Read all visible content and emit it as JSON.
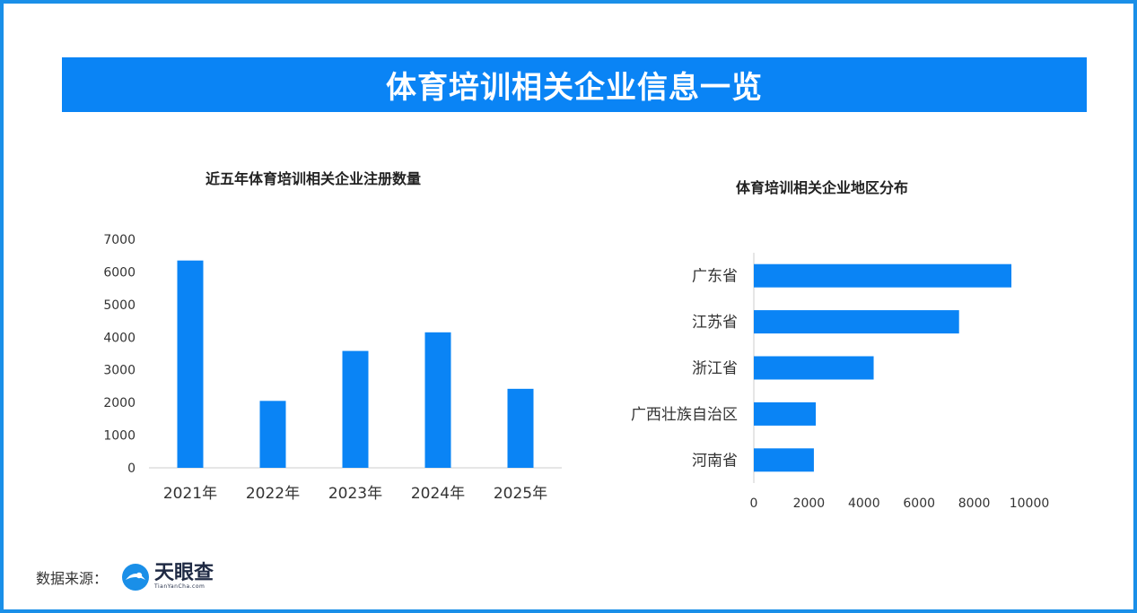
{
  "header": {
    "title": "体育培训相关企业信息一览"
  },
  "footer": {
    "source_label": "数据来源：",
    "brand_name": "天眼查",
    "brand_url": "TianYanCha.com"
  },
  "colors": {
    "accent": "#0a84f5",
    "border": "#1a8fe8"
  },
  "chart_data": [
    {
      "type": "bar",
      "title": "近五年体育培训相关企业注册数量",
      "categories": [
        "2021年",
        "2022年",
        "2023年",
        "2024年",
        "2025年"
      ],
      "values": [
        6350,
        2050,
        3580,
        4150,
        2420
      ],
      "ylim": [
        0,
        7000
      ],
      "yticks": [
        0,
        1000,
        2000,
        3000,
        4000,
        5000,
        6000,
        7000
      ],
      "grid": false,
      "color": "#0a84f5"
    },
    {
      "type": "bar",
      "orientation": "horizontal",
      "title": "体育培训相关企业地区分布",
      "categories": [
        "广东省",
        "江苏省",
        "浙江省",
        "广西壮族自治区",
        "河南省"
      ],
      "values": [
        9350,
        7450,
        4350,
        2250,
        2180
      ],
      "xlim": [
        0,
        10000
      ],
      "xticks": [
        0,
        2000,
        4000,
        6000,
        8000,
        10000
      ],
      "grid": false,
      "color": "#0a84f5"
    }
  ]
}
